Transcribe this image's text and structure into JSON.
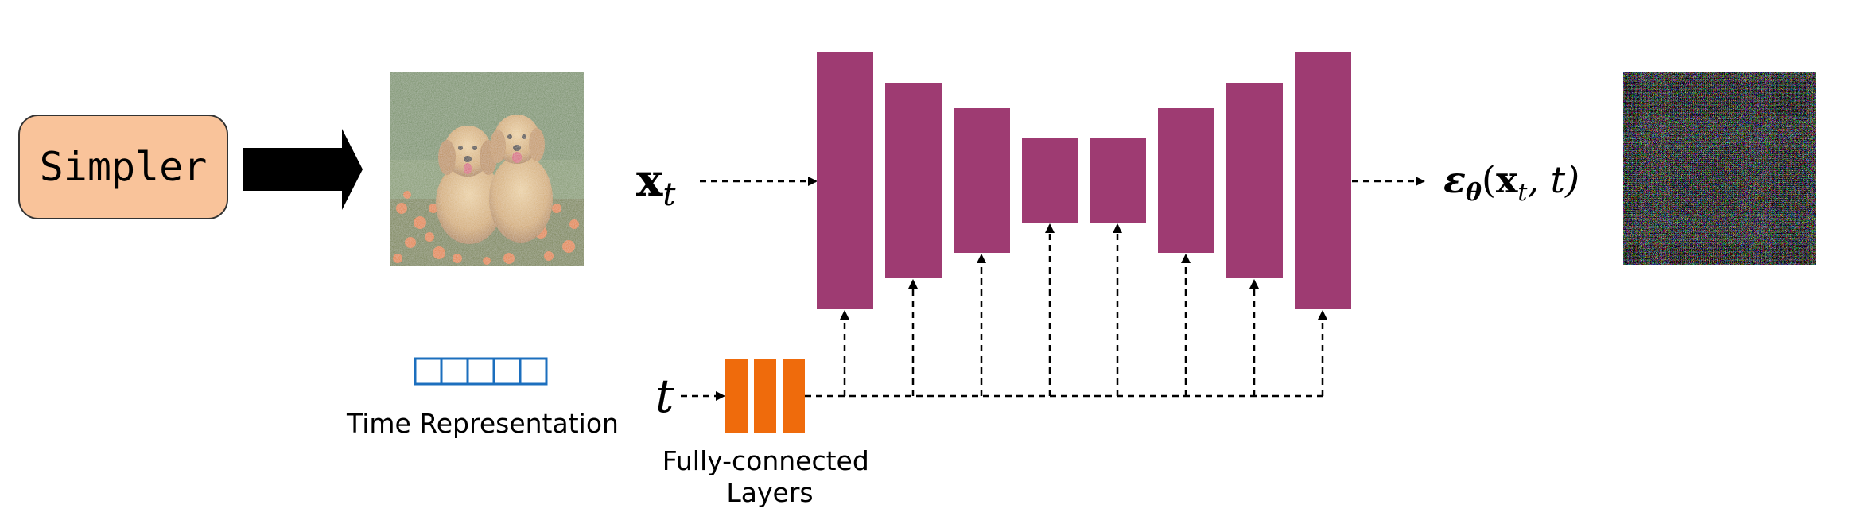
{
  "simpler_box": {
    "label": "Simpler"
  },
  "time_representation": {
    "label": "Time Representation",
    "cells": 5
  },
  "fc_layers": {
    "label_line1": "Fully-connected",
    "label_line2": "Layers"
  },
  "math": {
    "input_symbol": "x",
    "input_subscript": "t",
    "time_symbol": "t",
    "output_epsilon": "ε",
    "output_theta": "θ",
    "output_open": "(",
    "output_x": "x",
    "output_sub": "t",
    "output_rest": ", t)"
  },
  "colors": {
    "simpler_fill": "#f9c39a",
    "unet_block": "#9e3b72",
    "fc_block": "#ef6b0c",
    "time_cells": "#1c6fbe"
  }
}
